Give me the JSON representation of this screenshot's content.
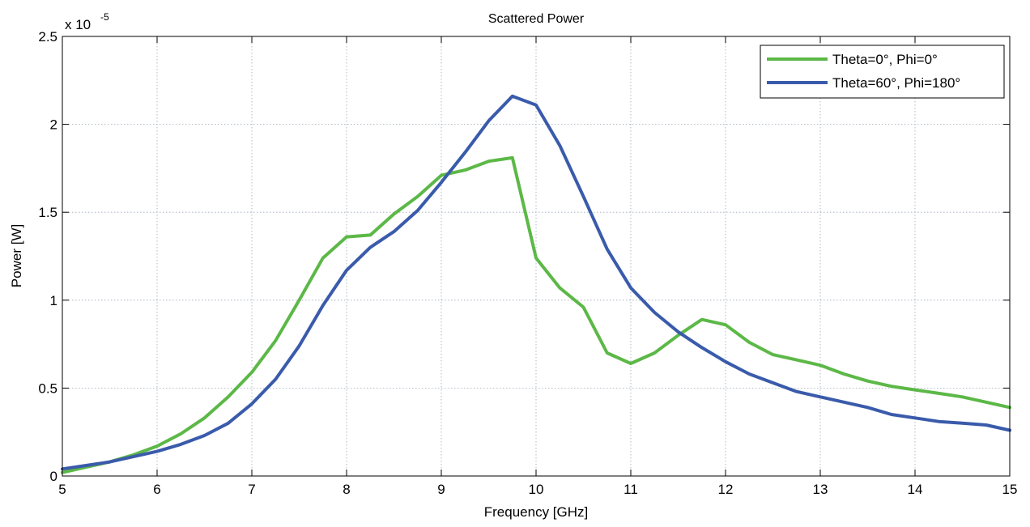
{
  "chart_data": {
    "type": "line",
    "title": "Scattered Power",
    "xlabel": "Frequency [GHz]",
    "ylabel": "Power [W]",
    "y_multiplier": "x 10",
    "y_exponent": "-5",
    "xlim": [
      5,
      15
    ],
    "ylim": [
      0,
      2.5
    ],
    "x_ticks": [
      5,
      6,
      7,
      8,
      9,
      10,
      11,
      12,
      13,
      14,
      15
    ],
    "x_tick_labels": [
      "5",
      "6",
      "7",
      "8",
      "9",
      "10",
      "11",
      "12",
      "13",
      "14",
      "15"
    ],
    "y_ticks": [
      0,
      0.5,
      1,
      1.5,
      2,
      2.5
    ],
    "y_tick_labels": [
      "0",
      "0.5",
      "1",
      "1.5",
      "2",
      "2.5"
    ],
    "grid": true,
    "legend_position": "top-right",
    "series": [
      {
        "name": "Theta=0°, Phi=0°",
        "color": "#5cb847",
        "x": [
          5,
          5.25,
          5.5,
          5.75,
          6,
          6.25,
          6.5,
          6.75,
          7,
          7.25,
          7.5,
          7.75,
          8,
          8.25,
          8.5,
          8.75,
          9,
          9.25,
          9.5,
          9.75,
          10,
          10.25,
          10.5,
          10.75,
          11,
          11.25,
          11.5,
          11.75,
          12,
          12.25,
          12.5,
          12.75,
          13,
          13.25,
          13.5,
          13.75,
          14,
          14.25,
          14.5,
          14.75,
          15
        ],
        "y": [
          0.02,
          0.05,
          0.08,
          0.12,
          0.17,
          0.24,
          0.33,
          0.45,
          0.59,
          0.77,
          1.0,
          1.24,
          1.36,
          1.37,
          1.49,
          1.59,
          1.71,
          1.74,
          1.79,
          1.81,
          1.24,
          1.07,
          0.96,
          0.7,
          0.64,
          0.7,
          0.8,
          0.89,
          0.86,
          0.76,
          0.69,
          0.66,
          0.63,
          0.58,
          0.54,
          0.51,
          0.49,
          0.47,
          0.45,
          0.42,
          0.39
        ]
      },
      {
        "name": "Theta=60°, Phi=180°",
        "color": "#3a5bab",
        "x": [
          5,
          5.25,
          5.5,
          5.75,
          6,
          6.25,
          6.5,
          6.75,
          7,
          7.25,
          7.5,
          7.75,
          8,
          8.25,
          8.5,
          8.75,
          9,
          9.25,
          9.5,
          9.75,
          10,
          10.25,
          10.5,
          10.75,
          11,
          11.25,
          11.5,
          11.75,
          12,
          12.25,
          12.5,
          12.75,
          13,
          13.25,
          13.5,
          13.75,
          14,
          14.25,
          14.5,
          14.75,
          15
        ],
        "y": [
          0.04,
          0.06,
          0.08,
          0.11,
          0.14,
          0.18,
          0.23,
          0.3,
          0.41,
          0.55,
          0.74,
          0.97,
          1.17,
          1.3,
          1.39,
          1.51,
          1.67,
          1.84,
          2.02,
          2.16,
          2.11,
          1.88,
          1.59,
          1.29,
          1.07,
          0.93,
          0.82,
          0.73,
          0.65,
          0.58,
          0.53,
          0.48,
          0.45,
          0.42,
          0.39,
          0.35,
          0.33,
          0.31,
          0.3,
          0.29,
          0.26
        ]
      }
    ]
  }
}
